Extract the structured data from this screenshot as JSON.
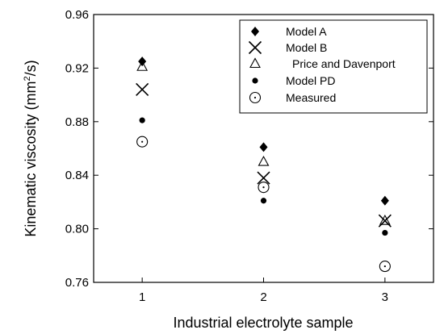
{
  "chart_data": {
    "type": "scatter",
    "xlabel": "Industrial electrolyte sample",
    "ylabel_main": "Kinematic viscosity (mm",
    "ylabel_sup": "2",
    "ylabel_tail": "/s)",
    "xlim": [
      0.6,
      3.4
    ],
    "ylim": [
      0.76,
      0.96
    ],
    "x_ticks": [
      1,
      2,
      3
    ],
    "x_tick_labels": [
      "1",
      "2",
      "3"
    ],
    "y_ticks": [
      0.76,
      0.8,
      0.84,
      0.88,
      0.92,
      0.96
    ],
    "y_tick_labels": [
      "0.76",
      "0.80",
      "0.84",
      "0.88",
      "0.92",
      "0.96"
    ],
    "grid": false,
    "legend_position": "top-right",
    "x": [
      1,
      2,
      3
    ],
    "series": [
      {
        "name": "Model A",
        "marker": "diamond-filled",
        "values": [
          0.925,
          0.861,
          0.821
        ]
      },
      {
        "name": "Model B",
        "marker": "x",
        "values": [
          0.904,
          0.838,
          0.806
        ]
      },
      {
        "name": "Price and Davenport",
        "marker": "triangle-open",
        "values": [
          0.921,
          0.85,
          0.806
        ]
      },
      {
        "name": "Model PD",
        "marker": "circle-filled",
        "values": [
          0.881,
          0.821,
          0.797
        ]
      },
      {
        "name": "Measured",
        "marker": "circle-dot-open",
        "values": [
          0.865,
          0.831,
          0.772
        ]
      }
    ],
    "colors": {
      "marker": "#000000",
      "axis": "#000000"
    }
  }
}
